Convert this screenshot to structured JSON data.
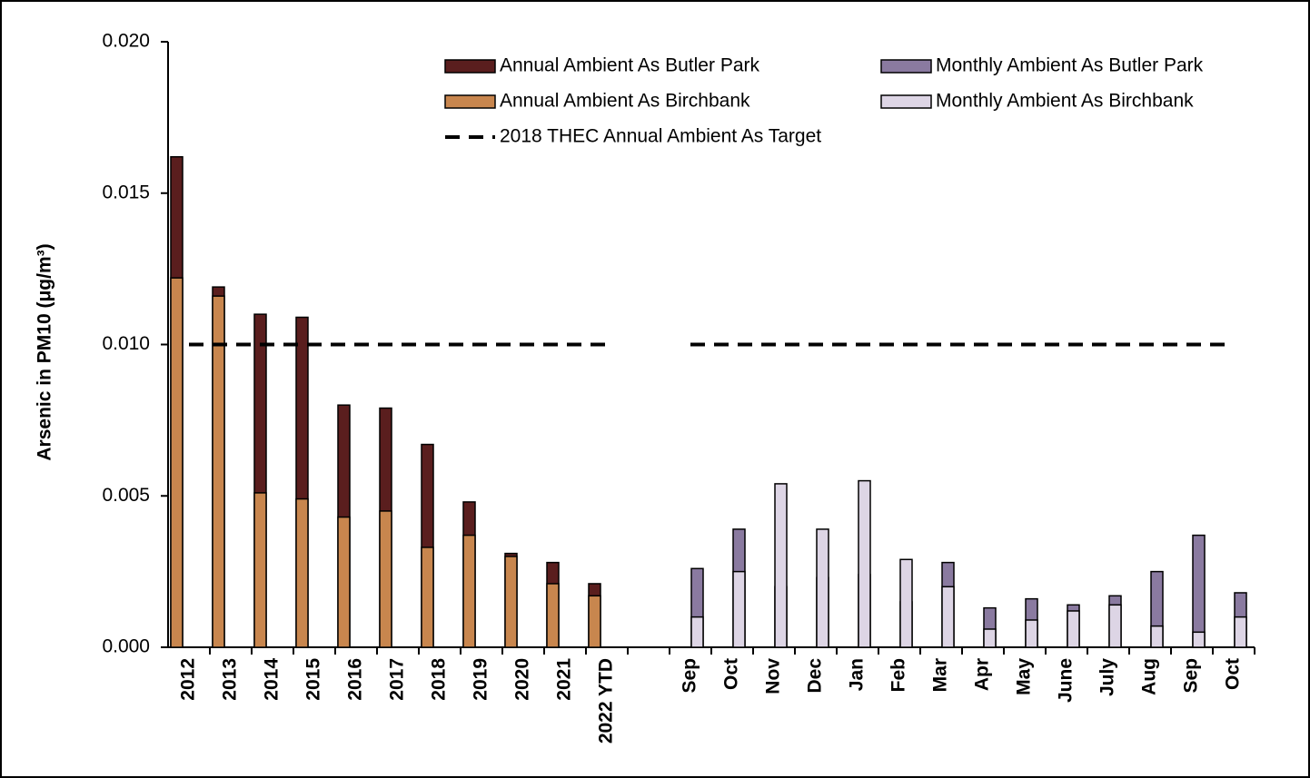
{
  "chart_data": {
    "type": "bar",
    "y_label": "Arsenic in PM10  (μg/m³)",
    "categories": [
      "2012",
      "2013",
      "2014",
      "2015",
      "2016",
      "2017",
      "2018",
      "2019",
      "2020",
      "2021",
      "2022 YTD",
      null,
      "Sep",
      "Oct",
      "Nov",
      "Dec",
      "Jan",
      "Feb",
      "Mar",
      "Apr",
      "May",
      "June",
      "July",
      "Aug",
      "Sep",
      "Oct"
    ],
    "ylim": [
      0,
      0.02
    ],
    "yticks": [
      {
        "value": 0,
        "label": "0.000"
      },
      0.005,
      {
        "value": 0.01,
        "label": "0.010"
      },
      0.015,
      {
        "value": 0.02,
        "label": "0.020"
      }
    ],
    "series": [
      {
        "name": "Annual Ambient As Butler Park",
        "color": "#5a1e1e",
        "values": [
          0.0162,
          0.0119,
          0.011,
          0.0109,
          0.008,
          0.0079,
          0.0067,
          0.0048,
          0.0031,
          0.0028,
          0.0021,
          null,
          null,
          null,
          null,
          null,
          null,
          null,
          null,
          null,
          null,
          null,
          null,
          null,
          null,
          null
        ]
      },
      {
        "name": "Monthly Ambient As Butler Park",
        "color": "#8a7aa0",
        "values": [
          null,
          null,
          null,
          null,
          null,
          null,
          null,
          null,
          null,
          null,
          null,
          null,
          0.0026,
          0.0039,
          0.002,
          0.0023,
          0.0024,
          0.0015,
          0.0028,
          0.0013,
          0.0016,
          0.0014,
          0.0017,
          0.0025,
          0.0037,
          0.0018
        ]
      },
      {
        "name": "Annual Ambient As Birchbank",
        "color": "#c8864e",
        "values": [
          0.0122,
          0.0116,
          0.0051,
          0.0049,
          0.0043,
          0.0045,
          0.0033,
          0.0037,
          0.003,
          0.0021,
          0.0017,
          null,
          null,
          null,
          null,
          null,
          null,
          null,
          null,
          null,
          null,
          null,
          null,
          null,
          null,
          null
        ]
      },
      {
        "name": "Monthly Ambient As Birchbank",
        "color": "#ddd5e5",
        "values": [
          null,
          null,
          null,
          null,
          null,
          null,
          null,
          null,
          null,
          null,
          null,
          null,
          0.001,
          0.0025,
          0.0054,
          0.0039,
          0.0055,
          0.0029,
          0.002,
          0.0006,
          0.0009,
          0.0012,
          0.0014,
          0.0007,
          0.0005,
          0.001
        ]
      },
      {
        "name": "2018 THEC Annual Ambient As Target",
        "color": "#000000",
        "type": "line",
        "dashed": true,
        "values": [
          0.01,
          0.01,
          0.01,
          0.01,
          0.01,
          0.01,
          0.01,
          0.01,
          0.01,
          0.01,
          0.01,
          null,
          0.01,
          0.01,
          0.01,
          0.01,
          0.01,
          0.01,
          0.01,
          0.01,
          0.01,
          0.01,
          0.01,
          0.01,
          0.01,
          0.01
        ]
      }
    ]
  }
}
